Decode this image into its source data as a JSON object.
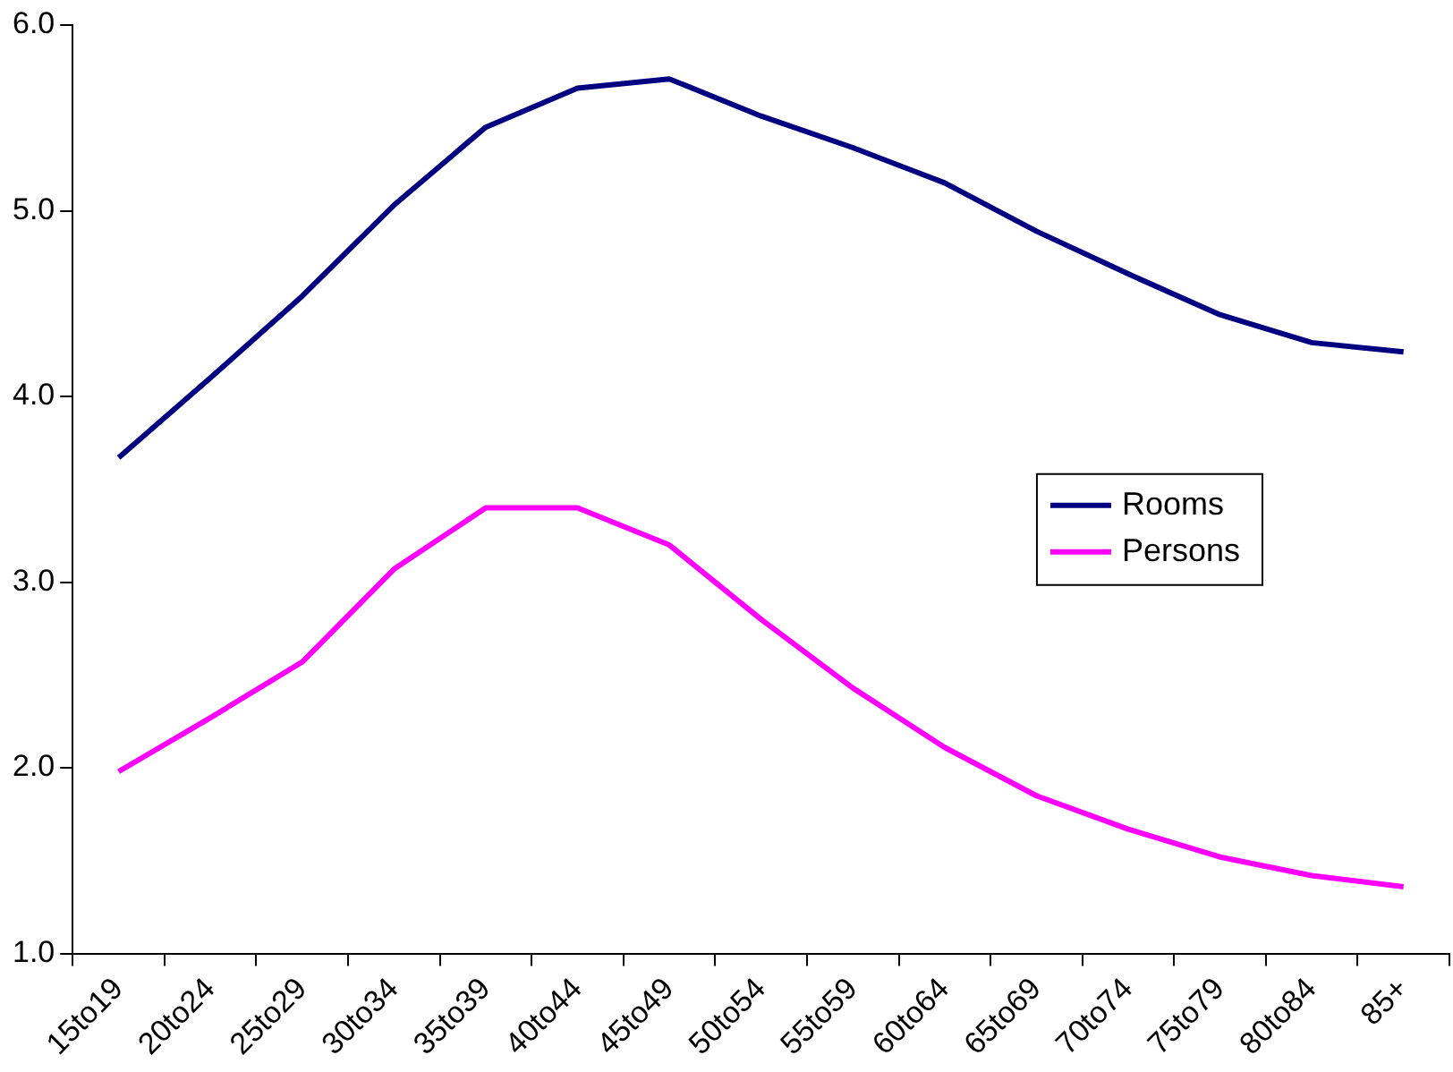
{
  "chart_data": {
    "type": "line",
    "categories": [
      "15to19",
      "20to24",
      "25to29",
      "30to34",
      "35to39",
      "40to44",
      "45to49",
      "50to54",
      "55to59",
      "60to64",
      "65to69",
      "70to74",
      "75to79",
      "80to84",
      "85+"
    ],
    "series": [
      {
        "name": "Rooms",
        "color": "#000080",
        "values": [
          3.67,
          4.1,
          4.54,
          5.03,
          5.45,
          5.66,
          5.71,
          5.51,
          5.34,
          5.15,
          4.89,
          4.66,
          4.44,
          4.29,
          4.24
        ]
      },
      {
        "name": "Persons",
        "color": "#ff00ff",
        "values": [
          1.98,
          2.27,
          2.57,
          3.07,
          3.4,
          3.4,
          3.2,
          2.8,
          2.43,
          2.11,
          1.85,
          1.67,
          1.52,
          1.42,
          1.36
        ]
      }
    ],
    "ylim": [
      1,
      6
    ],
    "yticks": [
      {
        "value": 1,
        "label": "1.0"
      },
      {
        "value": 2,
        "label": "2.0"
      },
      {
        "value": 3,
        "label": "3.0"
      },
      {
        "value": 4,
        "label": "4.0"
      },
      {
        "value": 5,
        "label": "5.0"
      },
      {
        "value": 6,
        "label": "6.0"
      }
    ],
    "grid": false,
    "legend": "right",
    "marker": "none",
    "line_style": "solid"
  }
}
